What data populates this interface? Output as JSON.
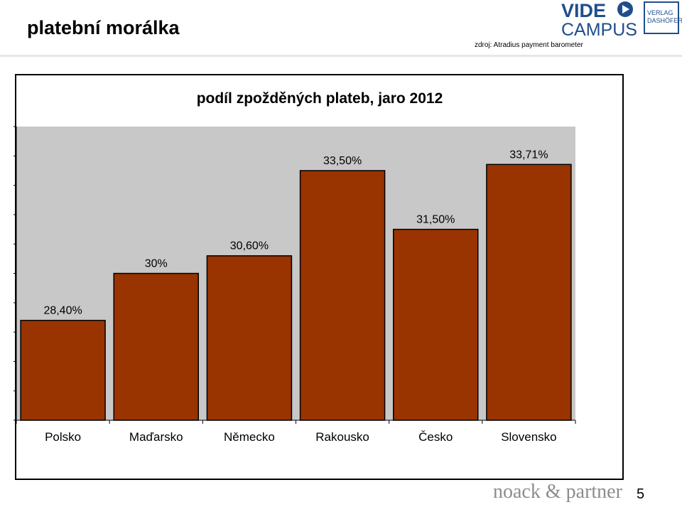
{
  "slide": {
    "title": "platební morálka",
    "source": "zdroj: Atradius payment barometer",
    "page_number": "5",
    "footer_brand": "noack & partner"
  },
  "logos": {
    "video_campus_line1": "VIDE",
    "video_campus_line2": "CAMPUS",
    "verlag_line1": "VERLAG",
    "verlag_line2": "DASHÖFER"
  },
  "colors": {
    "bar": "#993300",
    "plot_bg": "#c8c8c8",
    "logo_blue": "#1f4e8c"
  },
  "chart_data": {
    "type": "bar",
    "title": "podíl zpožděných plateb, jaro 2012",
    "categories": [
      "Polsko",
      "Maďarsko",
      "Německo",
      "Rakousko",
      "Česko",
      "Slovensko"
    ],
    "values": [
      28.4,
      30.0,
      30.6,
      33.5,
      31.5,
      33.71
    ],
    "data_labels": [
      "28,40%",
      "30%",
      "30,60%",
      "33,50%",
      "31,50%",
      "33,71%"
    ],
    "ylim": [
      25,
      35
    ],
    "grid": false,
    "legend": "none"
  }
}
